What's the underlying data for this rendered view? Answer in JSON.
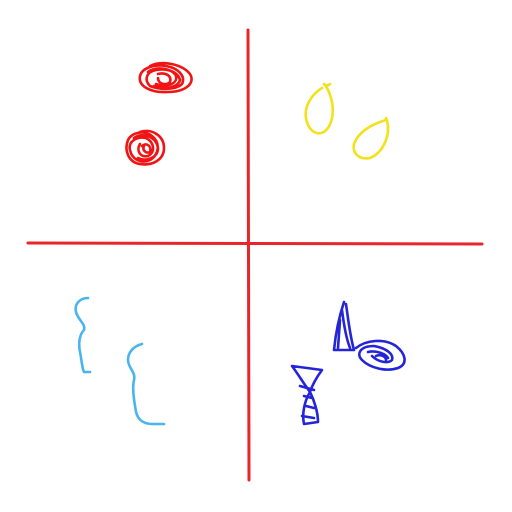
{
  "canvas": {
    "background": "#ffffff"
  },
  "colors": {
    "axis": "#e8262a",
    "red": "#f01414",
    "yellow": "#f2e21a",
    "light_blue": "#4ab4ee",
    "blue": "#2424d8"
  },
  "quadrants": [
    {
      "name": "top-left",
      "color": "red",
      "shape": "scribbled-circles",
      "count": 2
    },
    {
      "name": "top-right",
      "color": "yellow",
      "shape": "teardrop-outlines",
      "count": 2
    },
    {
      "name": "bottom-left",
      "color": "light_blue",
      "shape": "curly-brace-strokes",
      "count": 2
    },
    {
      "name": "bottom-right",
      "color": "blue",
      "shape": "triangle-scribbles",
      "count": 3
    }
  ]
}
